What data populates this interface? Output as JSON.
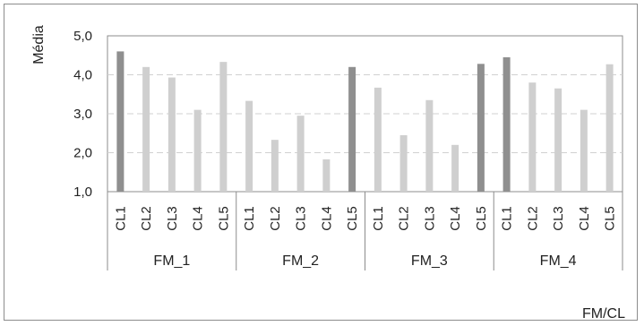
{
  "chart_data": {
    "type": "bar",
    "xlabel": "FM/CL",
    "ylabel": "Média",
    "ylim": [
      1,
      5
    ],
    "yticks": [
      "1,0",
      "2,0",
      "3,0",
      "4,0",
      "5,0"
    ],
    "groups": [
      {
        "name": "FM_1",
        "categories": [
          "CL1",
          "CL2",
          "CL3",
          "CL4",
          "CL5"
        ],
        "values": [
          4.6,
          4.2,
          3.93,
          3.1,
          4.33
        ]
      },
      {
        "name": "FM_2",
        "categories": [
          "CL1",
          "CL2",
          "CL3",
          "CL4",
          "CL5"
        ],
        "values": [
          3.33,
          2.33,
          2.95,
          1.83,
          4.2
        ]
      },
      {
        "name": "FM_3",
        "categories": [
          "CL1",
          "CL2",
          "CL3",
          "CL4",
          "CL5"
        ],
        "values": [
          3.67,
          2.45,
          3.35,
          2.2,
          4.28
        ]
      },
      {
        "name": "FM_4",
        "categories": [
          "CL1",
          "CL2",
          "CL3",
          "CL4",
          "CL5"
        ],
        "values": [
          4.45,
          3.8,
          3.65,
          3.1,
          4.27
        ]
      }
    ],
    "highlighted": [
      [
        0,
        0
      ],
      [
        1,
        4
      ],
      [
        2,
        4
      ],
      [
        3,
        0
      ]
    ],
    "grid": true,
    "colors": {
      "highlight": "#8f8f8f",
      "normal": "#cfcfcf",
      "grid": "#d0d0d0",
      "axis": "#8c8c8c"
    }
  }
}
